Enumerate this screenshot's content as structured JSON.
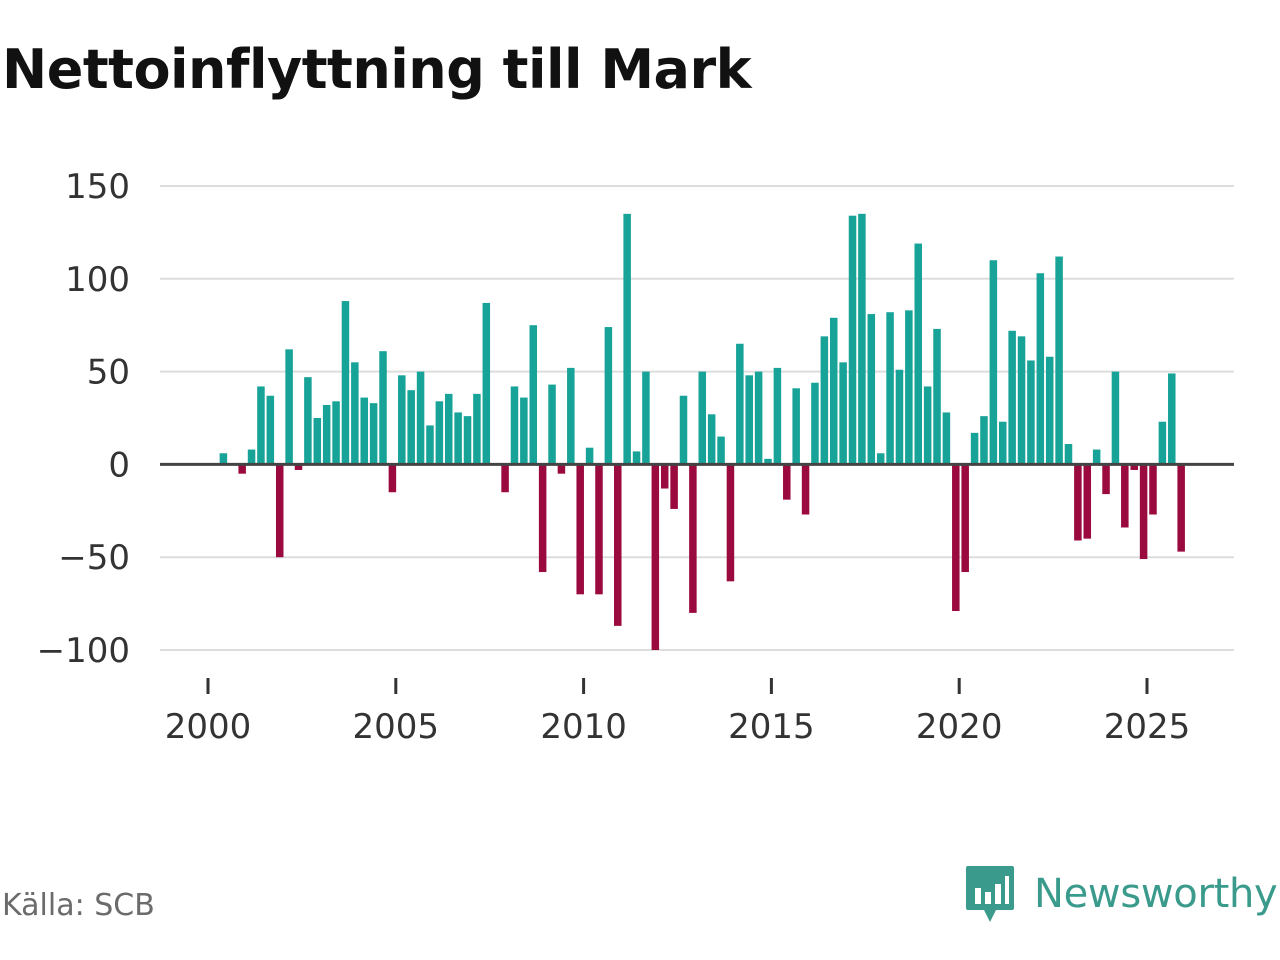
{
  "title": "Nettoinflyttning till Mark",
  "source": "Källa: SCB",
  "brand": {
    "name": "Newsworthy",
    "logo_icon": "newsworthy-bar-chart-icon"
  },
  "colors": {
    "positive": "#17a398",
    "negative": "#9b0a3e",
    "grid": "#dddddd",
    "axis": "#444444"
  },
  "chart_data": {
    "type": "bar",
    "title": "Nettoinflyttning till Mark",
    "xlabel": "",
    "ylabel": "",
    "ylim": [
      -100,
      150
    ],
    "yticks": [
      150,
      100,
      50,
      0,
      -50,
      -100
    ],
    "ytick_labels": [
      "150",
      "100",
      "50",
      "0",
      "−50",
      "−100"
    ],
    "xticks": [
      2000,
      2005,
      2010,
      2015,
      2020,
      2025
    ],
    "xtick_labels": [
      "2000",
      "2005",
      "2010",
      "2015",
      "2020",
      "2025"
    ],
    "x_start": 2000,
    "x_step": 0.25,
    "values": [
      0,
      6,
      0,
      -5,
      8,
      42,
      37,
      -50,
      62,
      -3,
      47,
      25,
      32,
      34,
      88,
      55,
      36,
      33,
      61,
      -15,
      48,
      40,
      50,
      21,
      34,
      38,
      28,
      26,
      38,
      87,
      0,
      -15,
      42,
      36,
      75,
      -58,
      43,
      -5,
      52,
      -70,
      9,
      -70,
      74,
      -87,
      135,
      7,
      50,
      -100,
      -13,
      -24,
      37,
      -80,
      50,
      27,
      15,
      -63,
      65,
      48,
      50,
      3,
      52,
      -19,
      41,
      -27,
      44,
      69,
      79,
      55,
      134,
      135,
      81,
      6,
      82,
      51,
      83,
      119,
      42,
      73,
      28,
      -79,
      -58,
      17,
      26,
      110,
      23,
      72,
      69,
      56,
      103,
      58,
      112,
      11,
      -41,
      -40,
      8,
      -16,
      50,
      -34,
      -3,
      -51,
      -27,
      23,
      49,
      -47
    ]
  }
}
